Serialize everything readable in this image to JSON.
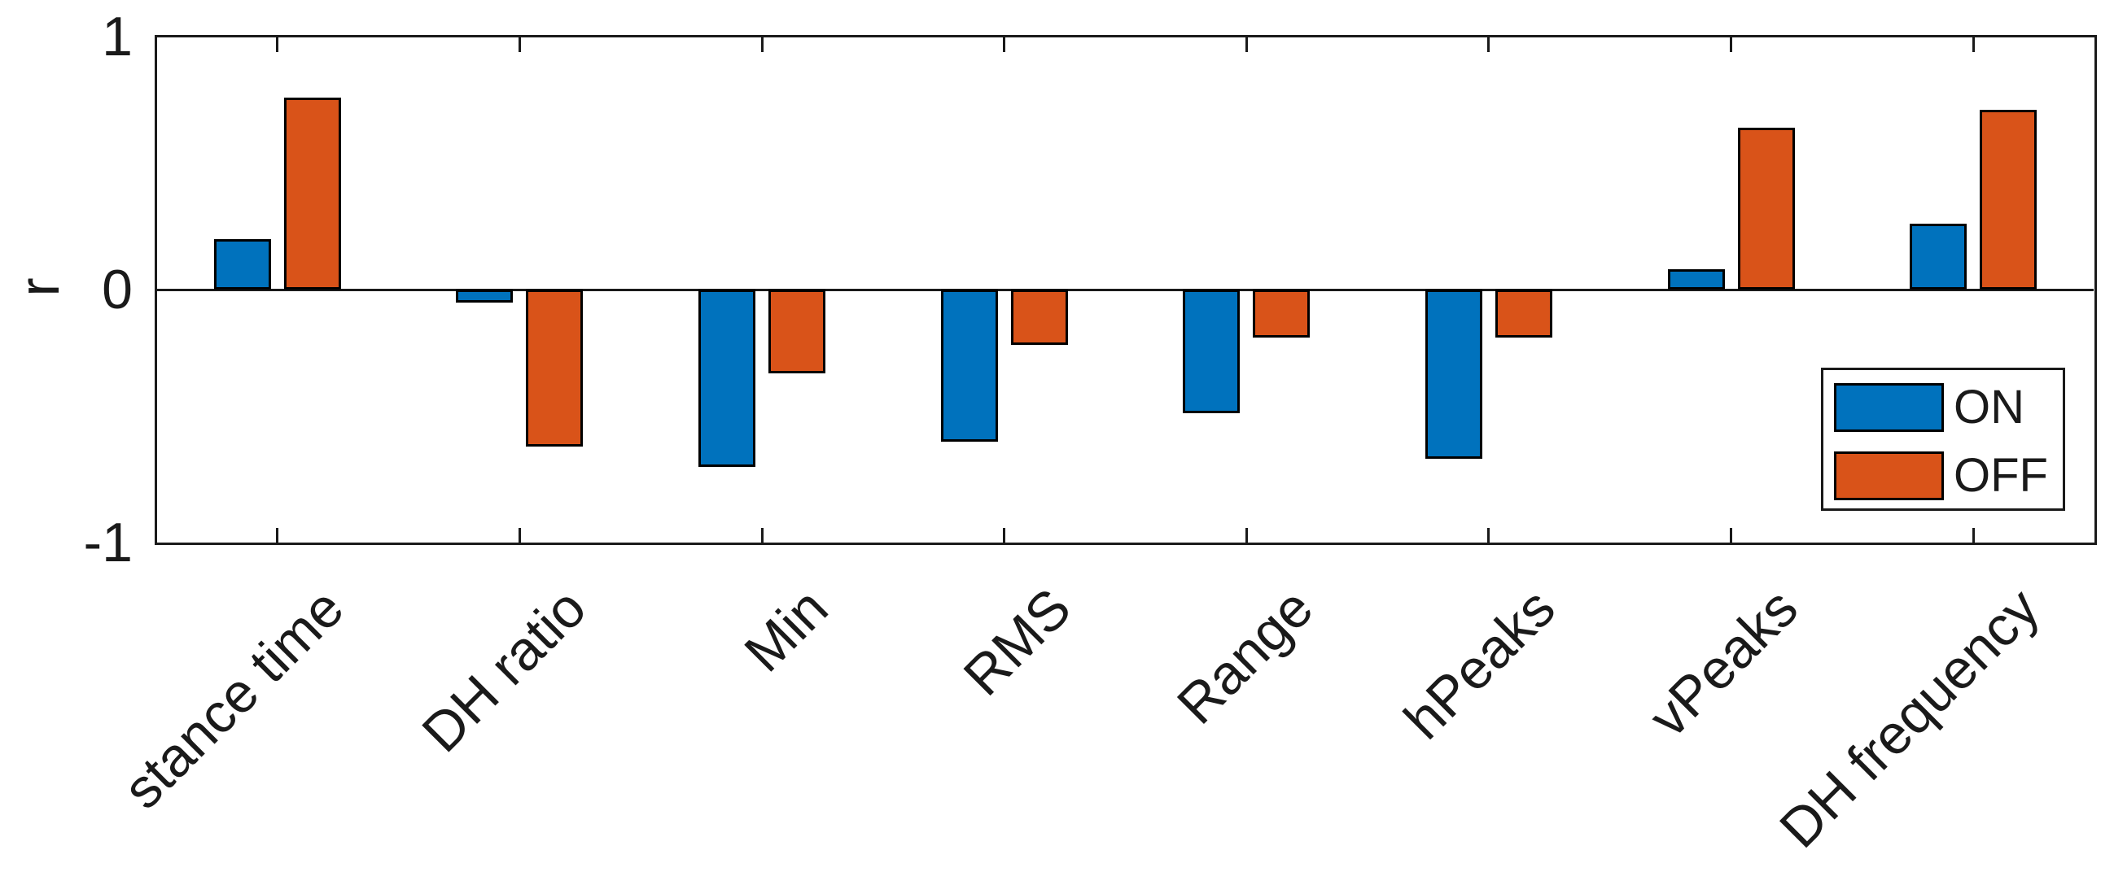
{
  "chart_data": {
    "type": "bar",
    "title": "",
    "ylabel": "r",
    "xlabel": "",
    "ylim": [
      -1,
      1
    ],
    "yticks": [
      1,
      0,
      -1
    ],
    "categories": [
      "stance time",
      "DH ratio",
      "Min",
      "RMS",
      "Range",
      "hPeaks",
      "vPeaks",
      "DH frequency"
    ],
    "series": [
      {
        "name": "ON",
        "color": "#0072BD",
        "values": [
          0.2,
          -0.05,
          -0.7,
          -0.6,
          -0.49,
          -0.67,
          0.08,
          0.26
        ]
      },
      {
        "name": "OFF",
        "color": "#D95319",
        "values": [
          0.76,
          -0.62,
          -0.33,
          -0.22,
          -0.19,
          -0.19,
          0.64,
          0.71
        ]
      }
    ],
    "legend": {
      "position": "lower right",
      "entries": [
        "ON",
        "OFF"
      ]
    },
    "grid": false,
    "bar_edge_color": "#000000",
    "axis_color": "#1a1a1a",
    "background": "#FFFFFF"
  }
}
